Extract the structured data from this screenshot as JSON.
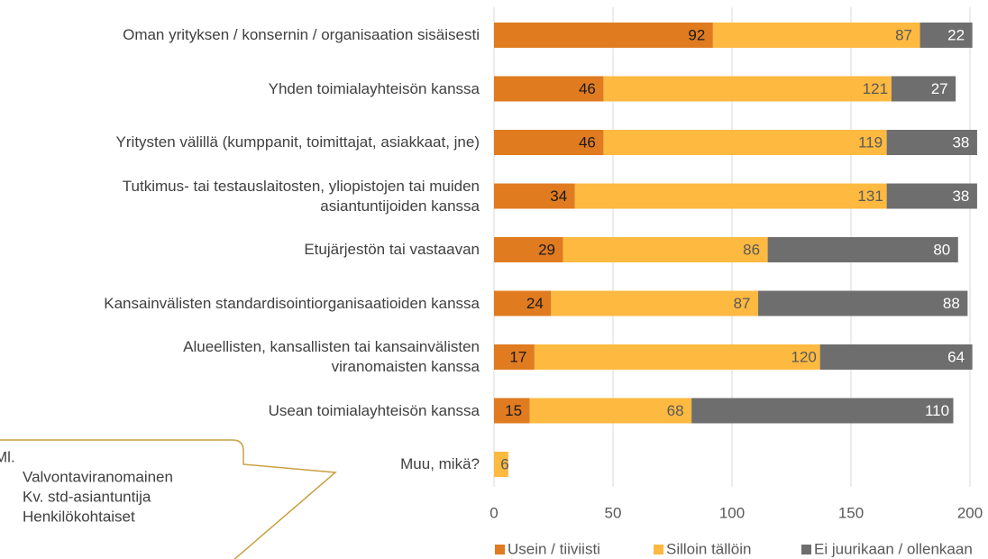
{
  "chart_data": {
    "type": "stacked-barh",
    "categories": [
      "Oman yrityksen / konsernin / organisaation sisäisesti",
      "Yhden toimialayhteisön kanssa",
      "Yritysten välillä (kumppanit, toimittajat, asiakkaat, jne)",
      "Tutkimus- tai testauslaitosten, yliopistojen tai muiden\nasiantuntijoiden kanssa",
      "Etujärjestön tai vastaavan",
      "Kansainvälisten standardisointiorganisaatioiden kanssa",
      "Alueellisten, kansallisten tai kansainvälisten\nviranomaisten kanssa",
      "Usean toimialayhteisön kanssa",
      "Muu, mikä?"
    ],
    "series": [
      {
        "name": "Usein / tiiviisti",
        "color": "#e07b20",
        "label_color": "#1a1a1a",
        "values": [
          92,
          46,
          46,
          34,
          29,
          24,
          17,
          15,
          null
        ]
      },
      {
        "name": "Silloin tällöin",
        "color": "#fdb940",
        "label_color": "#595959",
        "values": [
          87,
          121,
          119,
          131,
          86,
          87,
          120,
          68,
          6
        ]
      },
      {
        "name": "Ei juurikaan / ollenkaan",
        "color": "#6e6e6e",
        "label_color": "#ffffff",
        "values": [
          22,
          27,
          38,
          38,
          80,
          88,
          64,
          110,
          null
        ]
      }
    ],
    "xlim": [
      0,
      200
    ],
    "xticks": [
      0,
      50,
      100,
      150,
      200
    ],
    "grid": true,
    "legend": "bottom",
    "annotation": {
      "lines": [
        "Ml.",
        "Valvontaviranomainen",
        "Kv. std-asiantuntija",
        "Henkilökohtaiset"
      ]
    }
  }
}
